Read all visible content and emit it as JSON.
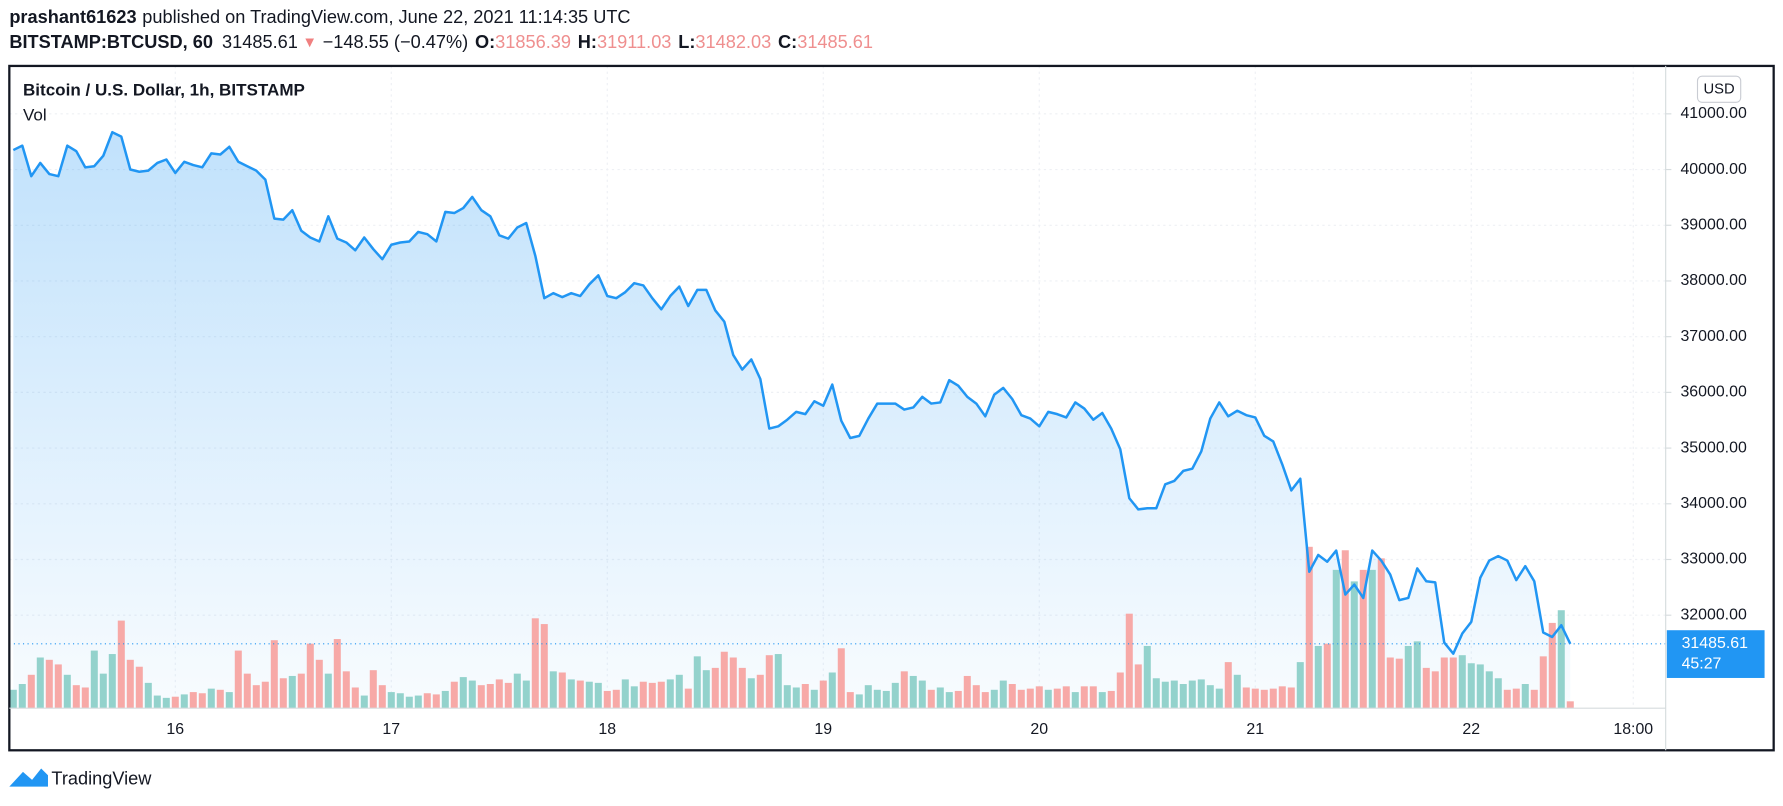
{
  "header": {
    "user": "prashant61623",
    "published": "published on TradingView.com, June 22, 2021 11:14:35 UTC",
    "symbol": "BITSTAMP:BTCUSD, 60",
    "price": "31485.61",
    "change_arrow": "▼",
    "change": "−148.55 (−0.47%)",
    "o_label": "O:",
    "o_value": "31856.39",
    "h_label": "H:",
    "h_value": "31911.03",
    "l_label": "L:",
    "l_value": "31482.03",
    "c_label": "C:",
    "c_value": "31485.61"
  },
  "footer": {
    "brand": "TradingView"
  },
  "chart_data": {
    "type": "line",
    "title": "Bitcoin / U.S. Dollar, 1h, BITSTAMP",
    "subtitle": "Vol",
    "currency": "USD",
    "countdown": "45:27",
    "grid": true,
    "x": [
      -18,
      -17,
      -16,
      -15,
      -14,
      -13,
      -12,
      -11,
      -10,
      -9,
      -8,
      -7,
      -6,
      -5,
      -4,
      -3,
      -2,
      -1,
      0,
      1,
      2,
      3,
      4,
      5,
      6,
      7,
      8,
      9,
      10,
      11,
      12,
      13,
      14,
      15,
      16,
      17,
      18,
      19,
      20,
      21,
      22,
      23,
      24,
      25,
      26,
      27,
      28,
      29,
      30,
      31,
      32,
      33,
      34,
      35,
      36,
      37,
      38,
      39,
      40,
      41,
      42,
      43,
      44,
      45,
      46,
      47,
      48,
      49,
      50,
      51,
      52,
      53,
      54,
      55,
      56,
      57,
      58,
      59,
      60,
      61,
      62,
      63,
      64,
      65,
      66,
      67,
      68,
      69,
      70,
      71,
      72,
      73,
      74,
      75,
      76,
      77,
      78,
      79,
      80,
      81,
      82,
      83,
      84,
      85,
      86,
      87,
      88,
      89,
      90,
      91,
      92,
      93,
      94,
      95,
      96,
      97,
      98,
      99,
      100,
      101,
      102,
      103,
      104,
      105,
      106,
      107,
      108,
      109,
      110,
      111,
      112,
      113,
      114,
      115,
      116,
      117,
      118,
      119,
      120,
      121,
      122,
      123,
      124,
      125,
      126,
      127,
      128,
      129,
      130,
      131,
      132,
      133,
      134,
      135,
      136,
      137,
      138,
      139,
      140,
      141,
      142,
      143,
      144,
      145,
      146,
      147,
      148,
      149,
      150,
      151,
      152,
      153,
      154,
      155
    ],
    "series": [
      {
        "color": "#2196f3",
        "values": [
          40350,
          40430,
          39880,
          40120,
          39920,
          39880,
          40430,
          40330,
          40040,
          40060,
          40250,
          40670,
          40590,
          40000,
          39960,
          39980,
          40120,
          40180,
          39940,
          40140,
          40080,
          40040,
          40290,
          40270,
          40410,
          40140,
          40060,
          39980,
          39820,
          39120,
          39100,
          39270,
          38900,
          38780,
          38710,
          39160,
          38760,
          38690,
          38550,
          38780,
          38570,
          38390,
          38650,
          38690,
          38710,
          38880,
          38840,
          38710,
          39240,
          39220,
          39310,
          39510,
          39270,
          39160,
          38820,
          38760,
          38960,
          39040,
          38450,
          37690,
          37780,
          37710,
          37780,
          37730,
          37940,
          38100,
          37730,
          37690,
          37800,
          37960,
          37920,
          37690,
          37490,
          37730,
          37900,
          37550,
          37840,
          37840,
          37470,
          37270,
          36670,
          36410,
          36590,
          36240,
          35350,
          35390,
          35510,
          35650,
          35610,
          35840,
          35760,
          36140,
          35490,
          35180,
          35220,
          35530,
          35800,
          35800,
          35800,
          35690,
          35730,
          35920,
          35800,
          35820,
          36220,
          36120,
          35920,
          35800,
          35570,
          35960,
          36080,
          35880,
          35590,
          35530,
          35390,
          35650,
          35610,
          35550,
          35820,
          35710,
          35510,
          35630,
          35350,
          34980,
          34100,
          33900,
          33920,
          33920,
          34350,
          34410,
          34590,
          34630,
          34940,
          35530,
          35820,
          35570,
          35670,
          35590,
          35550,
          35220,
          35120,
          34710,
          34240,
          34450,
          32780,
          33080,
          32960,
          33160,
          32370,
          32550,
          32310,
          33160,
          32980,
          32730,
          32270,
          32310,
          32840,
          32610,
          32590,
          31510,
          31310,
          31670,
          31880,
          32670,
          32980,
          33060,
          32980,
          32630,
          32880,
          32610,
          31690,
          31610,
          31820,
          31485.61
        ]
      }
    ],
    "volume": {
      "up_color": "#93d2cc",
      "down_color": "#f7a9a7",
      "values": [
        160,
        210,
        290,
        440,
        420,
        380,
        290,
        200,
        180,
        500,
        300,
        470,
        760,
        420,
        360,
        220,
        110,
        90,
        100,
        120,
        140,
        130,
        170,
        160,
        140,
        500,
        300,
        200,
        230,
        590,
        260,
        280,
        300,
        560,
        420,
        300,
        600,
        320,
        180,
        110,
        330,
        200,
        140,
        130,
        100,
        110,
        130,
        120,
        150,
        230,
        270,
        240,
        200,
        210,
        250,
        220,
        300,
        240,
        780,
        730,
        320,
        310,
        250,
        240,
        230,
        220,
        150,
        160,
        250,
        190,
        230,
        220,
        230,
        250,
        290,
        170,
        450,
        330,
        350,
        490,
        440,
        350,
        260,
        290,
        460,
        470,
        200,
        180,
        210,
        160,
        240,
        310,
        520,
        140,
        120,
        200,
        160,
        150,
        220,
        320,
        280,
        240,
        160,
        180,
        140,
        150,
        280,
        200,
        140,
        160,
        240,
        210,
        160,
        170,
        190,
        160,
        170,
        190,
        140,
        190,
        190,
        140,
        150,
        310,
        820,
        380,
        540,
        260,
        230,
        240,
        210,
        240,
        250,
        200,
        170,
        400,
        290,
        180,
        170,
        160,
        170,
        190,
        180,
        400,
        1400,
        540,
        560,
        1200,
        1370,
        1100,
        1200,
        1200,
        1300,
        440,
        430,
        540,
        580,
        350,
        320,
        440,
        440,
        460,
        390,
        380,
        320,
        260,
        160,
        170,
        210,
        160,
        450,
        740,
        850,
        60
      ]
    },
    "xlim": [
      -18.44,
      165.6
    ],
    "ylim": [
      30330,
      41860
    ],
    "xticks": [
      {
        "value": 0,
        "label": "16"
      },
      {
        "value": 24,
        "label": "17"
      },
      {
        "value": 48,
        "label": "18"
      },
      {
        "value": 72,
        "label": "19"
      },
      {
        "value": 96,
        "label": "20"
      },
      {
        "value": 120,
        "label": "21"
      },
      {
        "value": 144,
        "label": "22"
      },
      {
        "value": 162,
        "label": "18:00"
      }
    ],
    "yticks": [
      {
        "value": 32000,
        "label": "32000.00"
      },
      {
        "value": 33000,
        "label": "33000.00"
      },
      {
        "value": 34000,
        "label": "34000.00"
      },
      {
        "value": 35000,
        "label": "35000.00"
      },
      {
        "value": 36000,
        "label": "36000.00"
      },
      {
        "value": 37000,
        "label": "37000.00"
      },
      {
        "value": 38000,
        "label": "38000.00"
      },
      {
        "value": 39000,
        "label": "39000.00"
      },
      {
        "value": 40000,
        "label": "40000.00"
      },
      {
        "value": 41000,
        "label": "41000.00"
      }
    ]
  }
}
